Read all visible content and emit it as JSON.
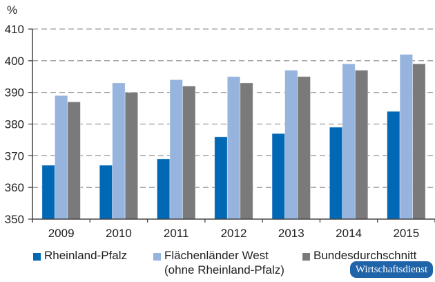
{
  "chart_data": {
    "type": "bar",
    "ylabel": "%",
    "xlabel": "",
    "title": "",
    "ylim": [
      350,
      410
    ],
    "yticks": [
      350,
      360,
      370,
      380,
      390,
      400,
      410
    ],
    "grid": true,
    "legend_placement": "bottom",
    "categories": [
      "2009",
      "2010",
      "2011",
      "2012",
      "2013",
      "2014",
      "2015"
    ],
    "series": [
      {
        "name": "Rheinland-Pfalz",
        "color": "#0068b4",
        "values": [
          367,
          367,
          369,
          376,
          377,
          379,
          384
        ]
      },
      {
        "name": "Flächenländer West",
        "name_line2": "(ohne Rheinland-Pfalz)",
        "color": "#97b4df",
        "values": [
          389,
          393,
          394,
          395,
          397,
          399,
          402
        ]
      },
      {
        "name": "Bundesdurchschnitt",
        "color": "#7a7a7a",
        "values": [
          387,
          390,
          392,
          393,
          395,
          397,
          399
        ]
      }
    ]
  },
  "logo": {
    "text": "Wirtschaftsdienst"
  }
}
